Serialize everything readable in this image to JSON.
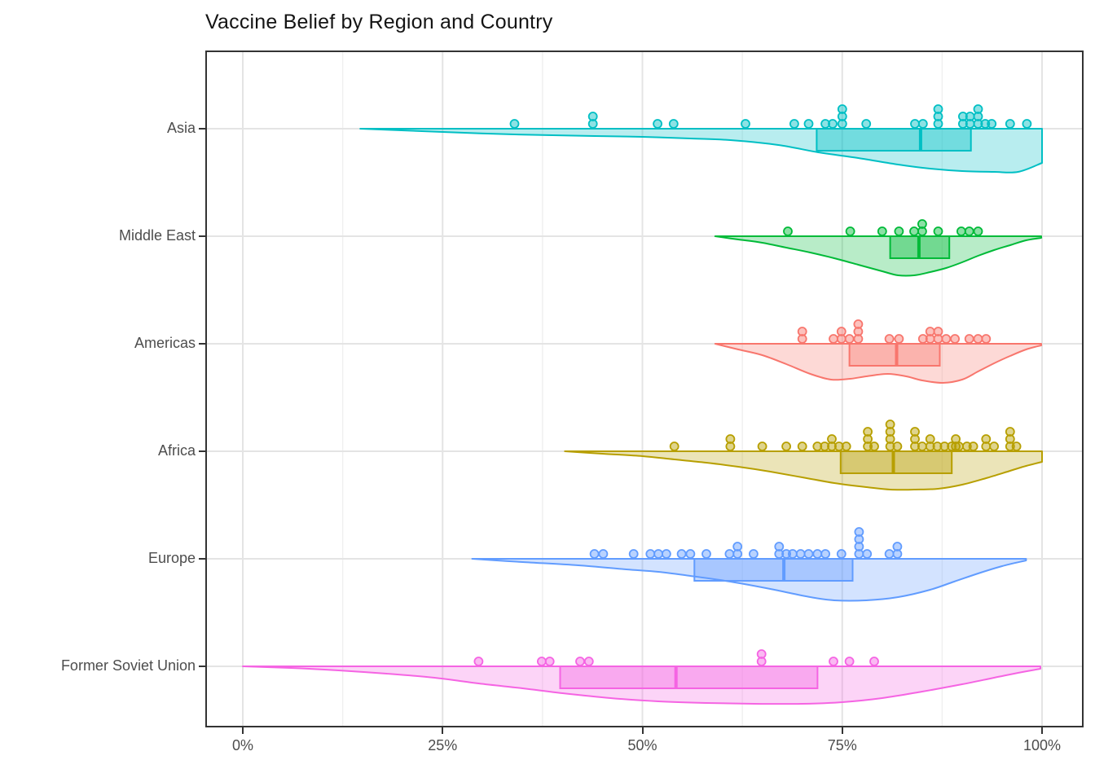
{
  "title": "Vaccine Belief by Region and Country",
  "axes": {
    "x_ticks": [
      "0%",
      "25%",
      "50%",
      "75%",
      "100%"
    ]
  },
  "chart_data": {
    "type": "raincloud (half-violin + boxplot + dotplot)",
    "title": "Vaccine Belief by Region and Country",
    "xlabel": "",
    "ylabel": "",
    "legend": "none",
    "grid": true,
    "x_axis": {
      "min": 0,
      "max": 100,
      "unit": "%",
      "ticks": [
        0,
        25,
        50,
        75,
        100
      ],
      "minor": [
        12.5,
        37.5,
        62.5,
        87.5
      ]
    },
    "regions": [
      {
        "name": "Asia",
        "color": "#00BFC4",
        "box": {
          "q1": 71.8,
          "median": 84.8,
          "q3": 91.1
        },
        "violin": [
          [
            14.7,
            0
          ],
          [
            25,
            4
          ],
          [
            34,
            7
          ],
          [
            44,
            9
          ],
          [
            50,
            10
          ],
          [
            56,
            12
          ],
          [
            61,
            14
          ],
          [
            67,
            20
          ],
          [
            72,
            29
          ],
          [
            77,
            36
          ],
          [
            82,
            44
          ],
          [
            86,
            49
          ],
          [
            90,
            52
          ],
          [
            94,
            53
          ],
          [
            97,
            53
          ],
          [
            100,
            42
          ]
        ],
        "points": [
          [
            34,
            0
          ],
          [
            43.8,
            0
          ],
          [
            43.8,
            1
          ],
          [
            51.9,
            0
          ],
          [
            53.9,
            0
          ],
          [
            62.9,
            0
          ],
          [
            69,
            0
          ],
          [
            70.8,
            0
          ],
          [
            72.9,
            0
          ],
          [
            73.8,
            0
          ],
          [
            75,
            0
          ],
          [
            75,
            1
          ],
          [
            75,
            2
          ],
          [
            78,
            0
          ],
          [
            84.1,
            0
          ],
          [
            85.1,
            0
          ],
          [
            87,
            0
          ],
          [
            87,
            1
          ],
          [
            87,
            2
          ],
          [
            90.1,
            0
          ],
          [
            90.1,
            1
          ],
          [
            91,
            0
          ],
          [
            91,
            1
          ],
          [
            92,
            0
          ],
          [
            92,
            1
          ],
          [
            92,
            2
          ],
          [
            92.9,
            0
          ],
          [
            93.7,
            0
          ],
          [
            96,
            0
          ],
          [
            98.1,
            0
          ]
        ]
      },
      {
        "name": "Middle East",
        "color": "#00BA38",
        "box": {
          "q1": 81.0,
          "median": 84.6,
          "q3": 88.4
        },
        "violin": [
          [
            59.1,
            0
          ],
          [
            62,
            4
          ],
          [
            65,
            8
          ],
          [
            68,
            14
          ],
          [
            71,
            20
          ],
          [
            74,
            27
          ],
          [
            77,
            35
          ],
          [
            80,
            43
          ],
          [
            82,
            48
          ],
          [
            84,
            48
          ],
          [
            86,
            44
          ],
          [
            88,
            39
          ],
          [
            90,
            32
          ],
          [
            92,
            24
          ],
          [
            94,
            17
          ],
          [
            96,
            11
          ],
          [
            98,
            5
          ],
          [
            99.9,
            2
          ]
        ],
        "points": [
          [
            68.2,
            0
          ],
          [
            76,
            0
          ],
          [
            80,
            0
          ],
          [
            82.1,
            0
          ],
          [
            84,
            0
          ],
          [
            85,
            0
          ],
          [
            85,
            1
          ],
          [
            87,
            0
          ],
          [
            89.9,
            0
          ],
          [
            90.9,
            0
          ],
          [
            92,
            0
          ]
        ]
      },
      {
        "name": "Americas",
        "color": "#F8766D",
        "box": {
          "q1": 75.9,
          "median": 81.8,
          "q3": 87.2
        },
        "violin": [
          [
            59.1,
            0
          ],
          [
            62,
            7
          ],
          [
            65,
            14
          ],
          [
            68,
            25
          ],
          [
            71,
            37
          ],
          [
            73.6,
            44
          ],
          [
            76,
            43
          ],
          [
            78,
            40
          ],
          [
            80.7,
            37
          ],
          [
            83,
            40
          ],
          [
            85,
            45
          ],
          [
            87.6,
            48
          ],
          [
            90,
            44
          ],
          [
            92,
            34
          ],
          [
            94,
            24
          ],
          [
            96,
            15
          ],
          [
            98,
            7
          ],
          [
            99.9,
            2
          ]
        ],
        "points": [
          [
            70,
            0
          ],
          [
            70,
            1
          ],
          [
            73.9,
            0
          ],
          [
            74.9,
            0
          ],
          [
            74.9,
            1
          ],
          [
            75.9,
            0
          ],
          [
            77,
            0
          ],
          [
            77,
            1
          ],
          [
            77,
            2
          ],
          [
            80.9,
            0
          ],
          [
            82.1,
            0
          ],
          [
            85.1,
            0
          ],
          [
            86,
            0
          ],
          [
            86,
            1
          ],
          [
            87,
            0
          ],
          [
            87,
            1
          ],
          [
            88,
            0
          ],
          [
            89.1,
            0
          ],
          [
            90.9,
            0
          ],
          [
            92,
            0
          ],
          [
            93,
            0
          ]
        ]
      },
      {
        "name": "Africa",
        "color": "#B79F00",
        "box": {
          "q1": 74.8,
          "median": 81.4,
          "q3": 88.7
        },
        "violin": [
          [
            40.3,
            0
          ],
          [
            45,
            3
          ],
          [
            50,
            6
          ],
          [
            54,
            10
          ],
          [
            58,
            14
          ],
          [
            62,
            19
          ],
          [
            66,
            25
          ],
          [
            70,
            32
          ],
          [
            74,
            39
          ],
          [
            78,
            44
          ],
          [
            81,
            47
          ],
          [
            84,
            47
          ],
          [
            87,
            46
          ],
          [
            90,
            41
          ],
          [
            93,
            33
          ],
          [
            96,
            24
          ],
          [
            98,
            18
          ],
          [
            100,
            13
          ]
        ],
        "points": [
          [
            54,
            0
          ],
          [
            61,
            0
          ],
          [
            61,
            1
          ],
          [
            65,
            0
          ],
          [
            68,
            0
          ],
          [
            70,
            0
          ],
          [
            71.9,
            0
          ],
          [
            72.8,
            0
          ],
          [
            73.7,
            0
          ],
          [
            73.7,
            1
          ],
          [
            74.6,
            0
          ],
          [
            75.5,
            0
          ],
          [
            78.2,
            0
          ],
          [
            78.2,
            1
          ],
          [
            78.2,
            2
          ],
          [
            79,
            0
          ],
          [
            81,
            0
          ],
          [
            81,
            1
          ],
          [
            81,
            2
          ],
          [
            81,
            3
          ],
          [
            81.9,
            0
          ],
          [
            84.1,
            0
          ],
          [
            84.1,
            1
          ],
          [
            84.1,
            2
          ],
          [
            85,
            0
          ],
          [
            86,
            0
          ],
          [
            86,
            1
          ],
          [
            86.9,
            0
          ],
          [
            87.8,
            0
          ],
          [
            88.7,
            0
          ],
          [
            89.2,
            0
          ],
          [
            89.2,
            1
          ],
          [
            89.6,
            0
          ],
          [
            90.6,
            0
          ],
          [
            91.4,
            0
          ],
          [
            93,
            0
          ],
          [
            93,
            1
          ],
          [
            94,
            0
          ],
          [
            96,
            0
          ],
          [
            96,
            1
          ],
          [
            96,
            2
          ],
          [
            96.8,
            0
          ]
        ]
      },
      {
        "name": "Europe",
        "color": "#619CFF",
        "box": {
          "q1": 56.5,
          "median": 67.7,
          "q3": 76.3
        },
        "violin": [
          [
            28.7,
            0
          ],
          [
            35,
            4
          ],
          [
            42,
            8
          ],
          [
            48,
            13
          ],
          [
            52,
            16
          ],
          [
            56,
            21
          ],
          [
            61,
            28
          ],
          [
            66,
            37
          ],
          [
            71,
            47
          ],
          [
            74,
            51
          ],
          [
            78,
            51
          ],
          [
            82,
            47
          ],
          [
            86,
            38
          ],
          [
            89,
            28
          ],
          [
            92,
            18
          ],
          [
            95,
            9
          ],
          [
            98,
            2
          ]
        ],
        "points": [
          [
            44,
            0
          ],
          [
            45.1,
            0
          ],
          [
            48.9,
            0
          ],
          [
            51,
            0
          ],
          [
            52,
            0
          ],
          [
            53,
            0
          ],
          [
            54.9,
            0
          ],
          [
            56,
            0
          ],
          [
            58,
            0
          ],
          [
            60.9,
            0
          ],
          [
            61.9,
            0
          ],
          [
            61.9,
            1
          ],
          [
            63.9,
            0
          ],
          [
            67.1,
            0
          ],
          [
            67.1,
            1
          ],
          [
            68,
            0
          ],
          [
            68.8,
            0
          ],
          [
            69.8,
            0
          ],
          [
            70.8,
            0
          ],
          [
            71.9,
            0
          ],
          [
            72.9,
            0
          ],
          [
            74.9,
            0
          ],
          [
            77.1,
            0
          ],
          [
            77.1,
            1
          ],
          [
            77.1,
            2
          ],
          [
            77.1,
            3
          ],
          [
            78.1,
            0
          ],
          [
            80.9,
            0
          ],
          [
            81.9,
            0
          ],
          [
            81.9,
            1
          ]
        ]
      },
      {
        "name": "Former Soviet Union",
        "color": "#F564E3",
        "box": {
          "q1": 39.7,
          "median": 54.2,
          "q3": 71.9
        },
        "violin": [
          [
            0,
            0
          ],
          [
            6,
            2
          ],
          [
            12,
            5
          ],
          [
            18,
            9
          ],
          [
            24,
            14
          ],
          [
            29.5,
            21
          ],
          [
            35,
            27
          ],
          [
            40,
            33
          ],
          [
            46,
            39
          ],
          [
            52,
            43
          ],
          [
            58,
            45
          ],
          [
            64,
            46
          ],
          [
            70,
            46
          ],
          [
            75,
            44
          ],
          [
            80,
            39
          ],
          [
            85,
            31
          ],
          [
            90,
            22
          ],
          [
            94,
            14
          ],
          [
            97,
            8
          ],
          [
            99.8,
            3
          ]
        ],
        "points": [
          [
            29.5,
            0
          ],
          [
            37.4,
            0
          ],
          [
            38.4,
            0
          ],
          [
            42.2,
            0
          ],
          [
            43.3,
            0
          ],
          [
            64.9,
            0
          ],
          [
            64.9,
            1
          ],
          [
            73.9,
            0
          ],
          [
            75.9,
            0
          ],
          [
            79,
            0
          ]
        ]
      }
    ]
  }
}
